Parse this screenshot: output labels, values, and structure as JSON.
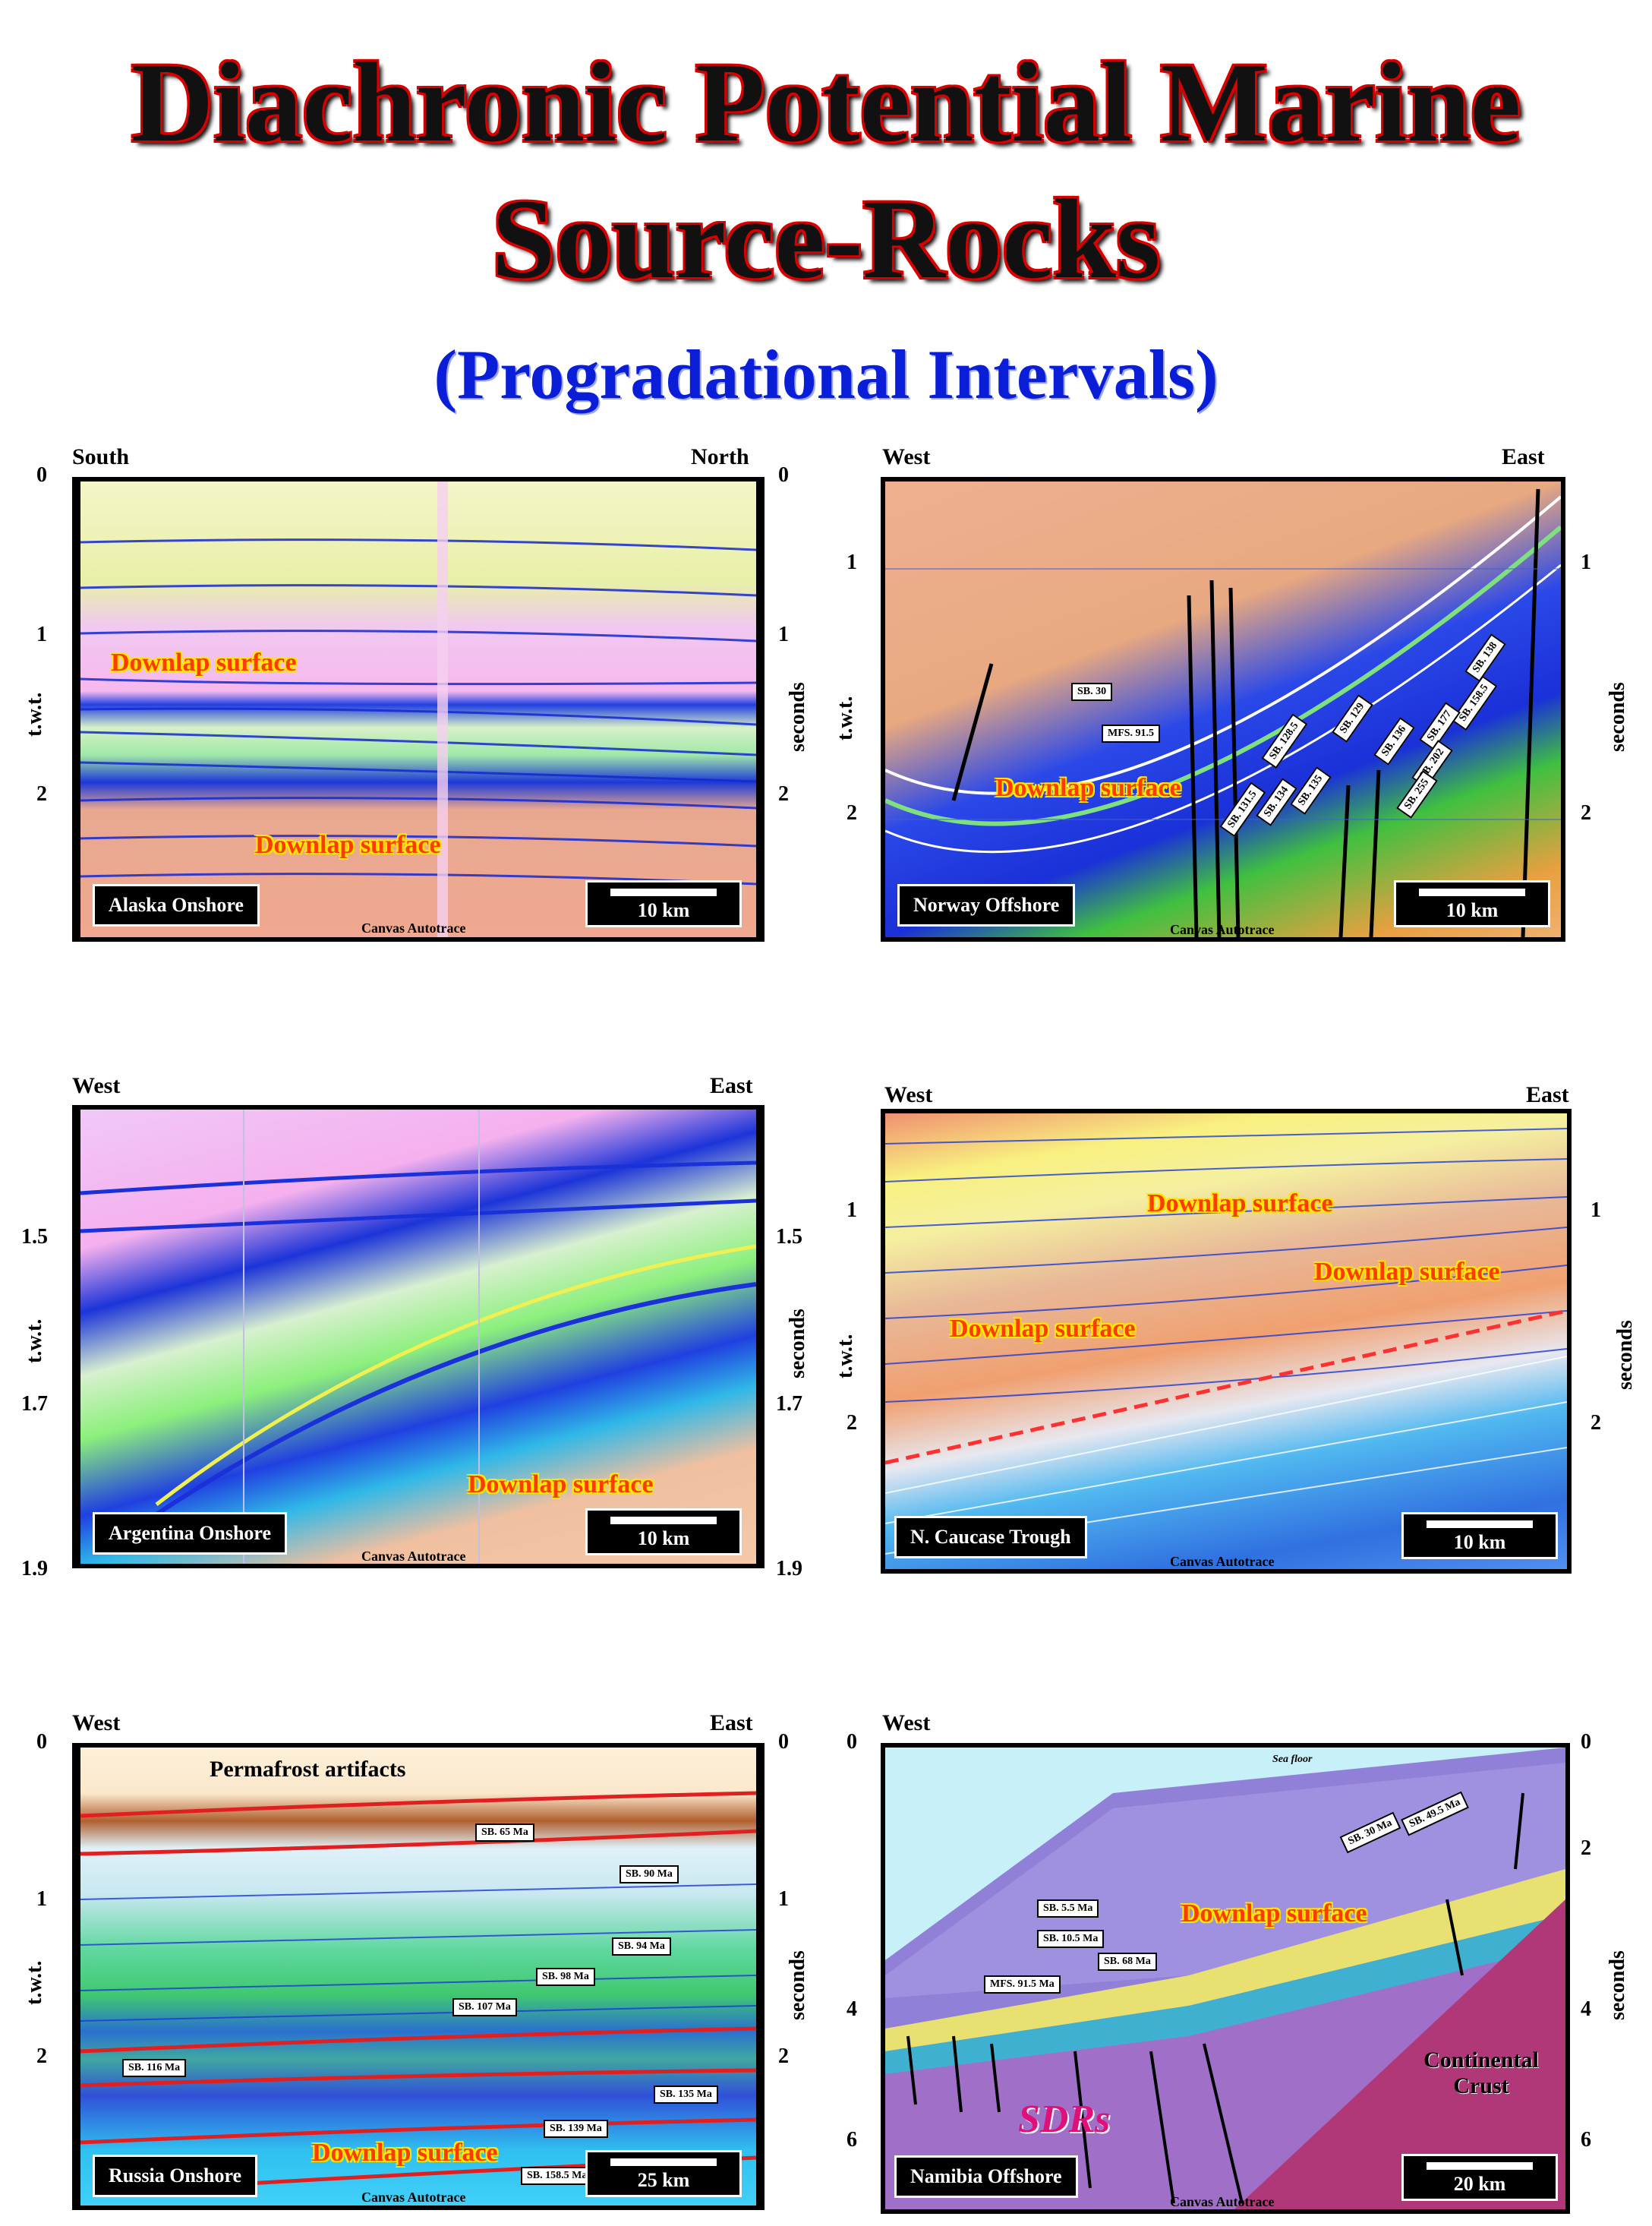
{
  "title": {
    "line1": "Diachronic Potential Marine",
    "line2": "Source-Rocks"
  },
  "subtitle": "(Progradational Intervals)",
  "panels": {
    "alaska": {
      "name": "Alaska Onshore",
      "left_dir": "South",
      "right_dir": "North",
      "scale": "10 km",
      "canvas": "Canvas Autotrace",
      "ylabel_left": "t.w.t.",
      "ylabel_right": "seconds",
      "ticks": [
        "0",
        "1",
        "2"
      ],
      "annot1": "Downlap surface",
      "annot2": "Downlap surface"
    },
    "norway": {
      "name": "Norway Offshore",
      "left_dir": "West",
      "right_dir": "East",
      "scale": "10 km",
      "canvas": "Canvas Autotrace",
      "ylabel_left": "t.w.t.",
      "ylabel_right": "seconds",
      "ticks": [
        "1",
        "2"
      ],
      "annot1": "Downlap surface",
      "labels": [
        "SB. 30",
        "MFS. 91.5",
        "SB. 128.5",
        "SB. 129",
        "SB. 131.5",
        "SB. 134",
        "SB. 135",
        "SB. 136",
        "SB. 138",
        "SB. 158.5",
        "SB. 177",
        "SB. 202",
        "SB. 255"
      ]
    },
    "argentina": {
      "name": "Argentina Onshore",
      "left_dir": "West",
      "right_dir": "East",
      "scale": "10 km",
      "canvas": "Canvas Autotrace",
      "ylabel_left": "t.w.t.",
      "ylabel_right": "seconds",
      "ticks": [
        "1.5",
        "1.7",
        "1.9"
      ],
      "annot1": "Downlap surface"
    },
    "caucase": {
      "name": "N. Caucase Trough",
      "left_dir": "West",
      "right_dir": "East",
      "scale": "10 km",
      "canvas": "Canvas Autotrace",
      "ylabel_left": "t.w.t.",
      "ylabel_right": "seconds",
      "ticks": [
        "1",
        "2"
      ],
      "annot1": "Downlap surface",
      "annot2": "Downlap surface",
      "annot3": "Downlap surface"
    },
    "russia": {
      "name": "Russia Onshore",
      "left_dir": "West",
      "right_dir": "East",
      "scale": "25 km",
      "canvas": "Canvas Autotrace",
      "ylabel_left": "t.w.t.",
      "ylabel_right": "seconds",
      "ticks": [
        "0",
        "1",
        "2"
      ],
      "note": "Permafrost artifacts",
      "annot1": "Downlap surface",
      "labels": [
        "SB. 65 Ma",
        "SB. 90 Ma",
        "SB. 94 Ma",
        "SB. 98 Ma",
        "SB. 107 Ma",
        "SB. 116 Ma",
        "SB. 135 Ma",
        "SB. 139 Ma",
        "SB. 158.5 Ma"
      ]
    },
    "namibia": {
      "name": "Namibia Offshore",
      "left_dir": "West",
      "scale": "20 km",
      "canvas": "Canvas Autotrace",
      "ylabel_right": "seconds",
      "ticks": [
        "0",
        "2",
        "4",
        "6"
      ],
      "annot1": "Downlap surface",
      "sdrs": "SDRs",
      "crust1": "Continental",
      "crust2": "Crust",
      "seafloor": "Sea floor",
      "labels": [
        "SB. 30 Ma",
        "SB. 49.5 Ma",
        "SB. 5.5 Ma",
        "SB. 10.5 Ma",
        "SB. 68 Ma",
        "MFS. 91.5 Ma"
      ]
    }
  },
  "colors": {
    "title_outline": "#d60000",
    "subtitle": "#0a1ed8",
    "annotation": "#ff3b00"
  }
}
